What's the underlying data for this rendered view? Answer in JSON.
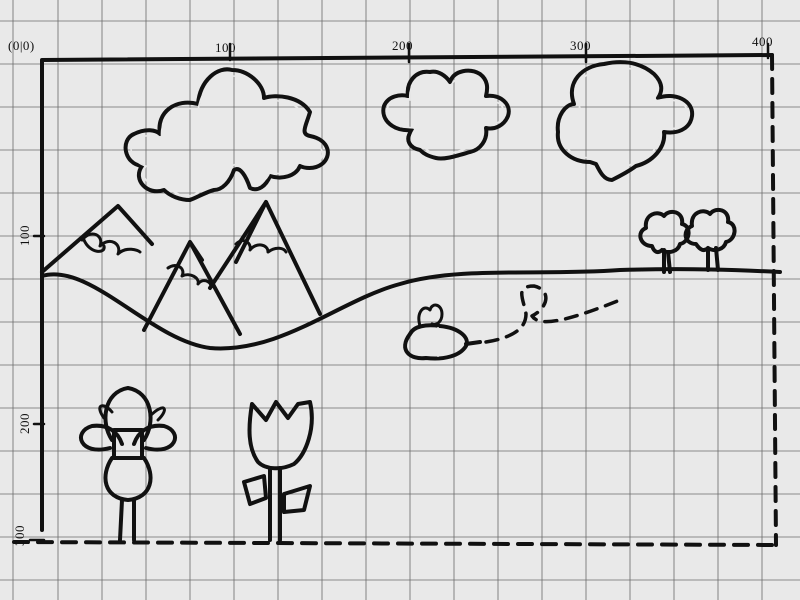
{
  "sheet": {
    "origin_label": "(0|0)",
    "top_axis_labels": [
      "100",
      "200",
      "300",
      "400"
    ],
    "left_axis_labels": [
      "100",
      "200",
      "300"
    ]
  },
  "drawing": {
    "subjects": [
      "cloud",
      "cloud",
      "cloud",
      "mountain",
      "mountain",
      "mountain",
      "hill",
      "tree",
      "tree",
      "bee",
      "flower",
      "tulip"
    ]
  },
  "colors": {
    "paper": "#e9e9e9",
    "grid": "#6d6d6d",
    "ink": "#111111"
  }
}
